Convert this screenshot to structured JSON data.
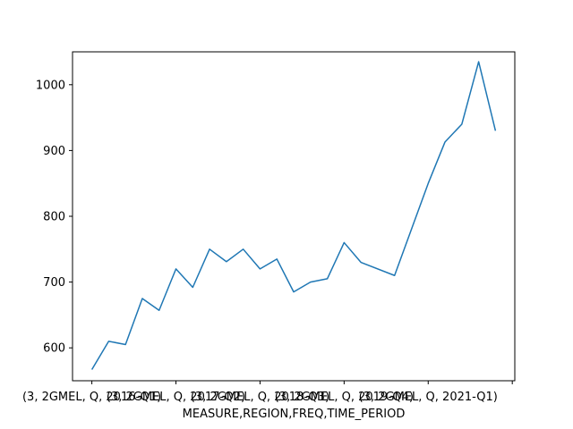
{
  "chart_data": {
    "type": "line",
    "xlabel": "MEASURE,REGION,FREQ,TIME_PERIOD",
    "ylabel": "",
    "title": "",
    "ylim": [
      550,
      1050
    ],
    "yticks": [
      600,
      700,
      800,
      900,
      1000
    ],
    "grid": false,
    "legend": "none",
    "line_color": "#1f77b4",
    "x_tick_labels": [
      "(3, 2GMEL, Q, 2016-Q1)",
      "(3, 2GMEL, Q, 2017-Q2)",
      "(3, 2GMEL, Q, 2018-Q3)",
      "(3, 2GMEL, Q, 2019-Q4)",
      "(3, 2GMEL, Q, 2021-Q1)",
      ""
    ],
    "x": [
      0,
      1,
      2,
      3,
      4,
      5,
      6,
      7,
      8,
      9,
      10,
      11,
      12,
      13,
      14,
      15,
      16,
      17,
      18,
      19,
      20,
      21,
      22,
      23,
      24
    ],
    "values": [
      567,
      610,
      605,
      675,
      657,
      720,
      692,
      750,
      731,
      750,
      720,
      735,
      685,
      700,
      705,
      760,
      730,
      null,
      710,
      780,
      850,
      913,
      940,
      1035,
      930
    ]
  }
}
